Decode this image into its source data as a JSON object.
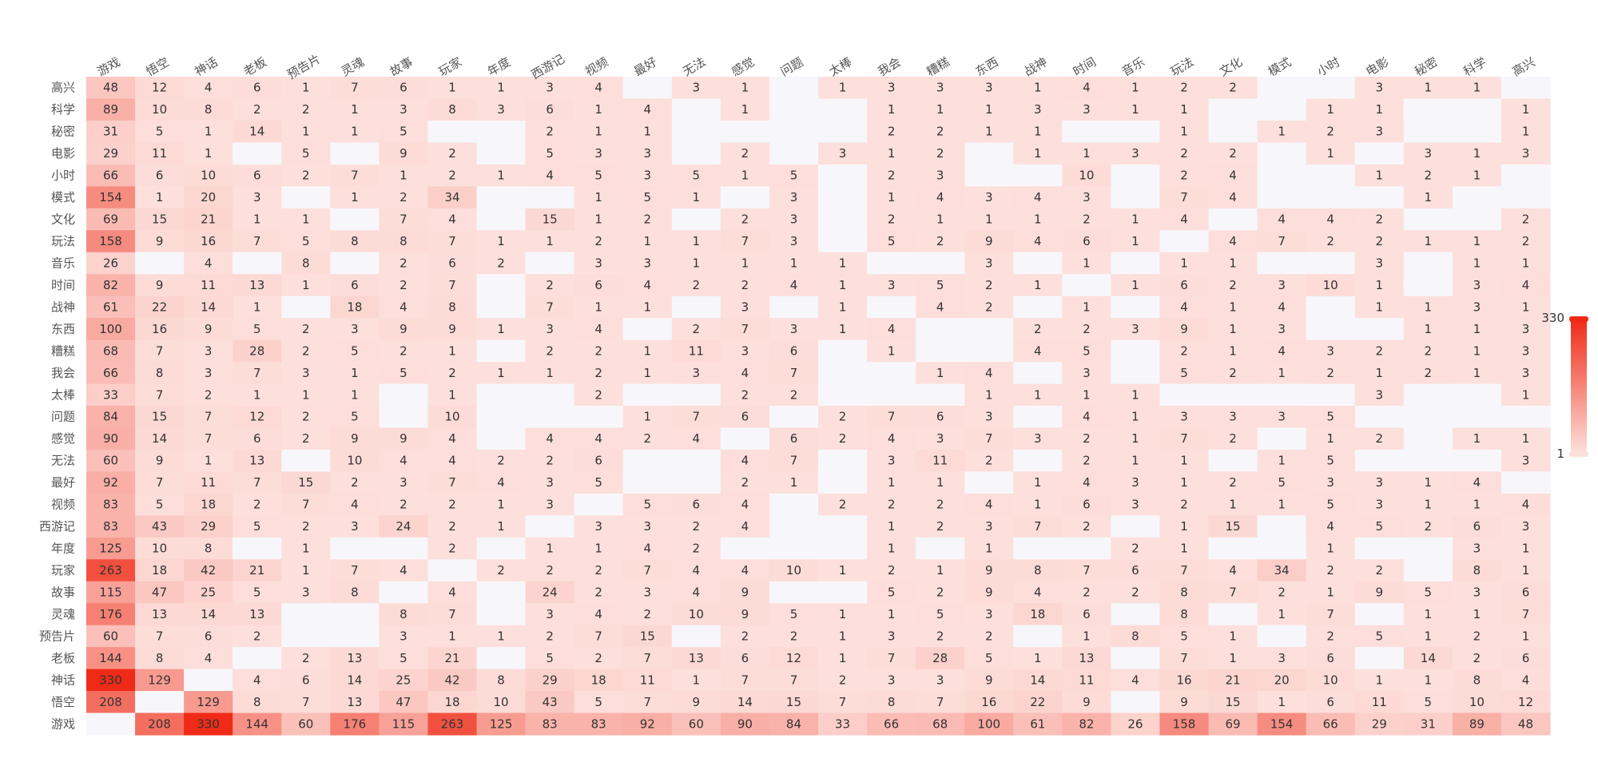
{
  "chart_data": {
    "type": "heatmap",
    "x_labels": [
      "游戏",
      "悟空",
      "神话",
      "老板",
      "预告片",
      "灵魂",
      "故事",
      "玩家",
      "年度",
      "西游记",
      "视频",
      "最好",
      "无法",
      "感觉",
      "问题",
      "太棒",
      "我会",
      "糟糕",
      "东西",
      "战神",
      "时间",
      "音乐",
      "玩法",
      "文化",
      "模式",
      "小时",
      "电影",
      "秘密",
      "科学",
      "高兴"
    ],
    "y_labels": [
      "高兴",
      "科学",
      "秘密",
      "电影",
      "小时",
      "模式",
      "文化",
      "玩法",
      "音乐",
      "时间",
      "战神",
      "东西",
      "糟糕",
      "我会",
      "太棒",
      "问题",
      "感觉",
      "无法",
      "最好",
      "视频",
      "西游记",
      "年度",
      "玩家",
      "故事",
      "灵魂",
      "预告片",
      "老板",
      "神话",
      "悟空",
      "游戏"
    ],
    "rows": [
      [
        48,
        12,
        4,
        6,
        1,
        7,
        6,
        1,
        1,
        3,
        4,
        null,
        3,
        1,
        null,
        1,
        3,
        3,
        3,
        1,
        4,
        1,
        2,
        2,
        null,
        null,
        3,
        1,
        1,
        null
      ],
      [
        89,
        10,
        8,
        2,
        2,
        1,
        3,
        8,
        3,
        6,
        1,
        4,
        null,
        1,
        null,
        null,
        1,
        1,
        1,
        3,
        3,
        1,
        1,
        null,
        null,
        1,
        1,
        null,
        null,
        1
      ],
      [
        31,
        5,
        1,
        14,
        1,
        1,
        5,
        null,
        null,
        2,
        1,
        1,
        null,
        null,
        null,
        null,
        2,
        2,
        1,
        1,
        null,
        null,
        1,
        null,
        1,
        2,
        3,
        null,
        null,
        1
      ],
      [
        29,
        11,
        1,
        null,
        5,
        null,
        9,
        2,
        null,
        5,
        3,
        3,
        null,
        2,
        null,
        3,
        1,
        2,
        null,
        1,
        1,
        3,
        2,
        2,
        null,
        1,
        null,
        3,
        1,
        3
      ],
      [
        66,
        6,
        10,
        6,
        2,
        7,
        1,
        2,
        1,
        4,
        5,
        3,
        5,
        1,
        5,
        null,
        2,
        3,
        null,
        null,
        10,
        null,
        2,
        4,
        null,
        null,
        1,
        2,
        1,
        null
      ],
      [
        154,
        1,
        20,
        3,
        null,
        1,
        2,
        34,
        null,
        null,
        1,
        5,
        1,
        null,
        3,
        null,
        1,
        4,
        3,
        4,
        3,
        null,
        7,
        4,
        null,
        null,
        null,
        1,
        null,
        null
      ],
      [
        69,
        15,
        21,
        1,
        1,
        null,
        7,
        4,
        null,
        15,
        1,
        2,
        null,
        2,
        3,
        null,
        2,
        1,
        1,
        1,
        2,
        1,
        4,
        null,
        4,
        4,
        2,
        null,
        null,
        2
      ],
      [
        158,
        9,
        16,
        7,
        5,
        8,
        8,
        7,
        1,
        1,
        2,
        1,
        1,
        7,
        3,
        null,
        5,
        2,
        9,
        4,
        6,
        1,
        null,
        4,
        7,
        2,
        2,
        1,
        1,
        2
      ],
      [
        26,
        null,
        4,
        null,
        8,
        null,
        2,
        6,
        2,
        null,
        3,
        3,
        1,
        1,
        1,
        1,
        null,
        null,
        3,
        null,
        1,
        null,
        1,
        1,
        null,
        null,
        3,
        null,
        1,
        1
      ],
      [
        82,
        9,
        11,
        13,
        1,
        6,
        2,
        7,
        null,
        2,
        6,
        4,
        2,
        2,
        4,
        1,
        3,
        5,
        2,
        1,
        null,
        1,
        6,
        2,
        3,
        10,
        1,
        null,
        3,
        4
      ],
      [
        61,
        22,
        14,
        1,
        null,
        18,
        4,
        8,
        null,
        7,
        1,
        1,
        null,
        3,
        null,
        1,
        null,
        4,
        2,
        null,
        1,
        null,
        4,
        1,
        4,
        null,
        1,
        1,
        3,
        1
      ],
      [
        100,
        16,
        9,
        5,
        2,
        3,
        9,
        9,
        1,
        3,
        4,
        null,
        2,
        7,
        3,
        1,
        4,
        null,
        null,
        2,
        2,
        3,
        9,
        1,
        3,
        null,
        null,
        1,
        1,
        3
      ],
      [
        68,
        7,
        3,
        28,
        2,
        5,
        2,
        1,
        null,
        2,
        2,
        1,
        11,
        3,
        6,
        null,
        1,
        null,
        null,
        4,
        5,
        null,
        2,
        1,
        4,
        3,
        2,
        2,
        1,
        3
      ],
      [
        66,
        8,
        3,
        7,
        3,
        1,
        5,
        2,
        1,
        1,
        2,
        1,
        3,
        4,
        7,
        null,
        null,
        1,
        4,
        null,
        3,
        null,
        5,
        2,
        1,
        2,
        1,
        2,
        1,
        3
      ],
      [
        33,
        7,
        2,
        1,
        1,
        1,
        null,
        1,
        null,
        null,
        2,
        null,
        null,
        2,
        2,
        null,
        null,
        null,
        1,
        1,
        1,
        1,
        null,
        null,
        null,
        null,
        3,
        null,
        null,
        1
      ],
      [
        84,
        15,
        7,
        12,
        2,
        5,
        null,
        10,
        null,
        null,
        null,
        1,
        7,
        6,
        null,
        2,
        7,
        6,
        3,
        null,
        4,
        1,
        3,
        3,
        3,
        5,
        null,
        null,
        null,
        null
      ],
      [
        90,
        14,
        7,
        6,
        2,
        9,
        9,
        4,
        null,
        4,
        4,
        2,
        4,
        null,
        6,
        2,
        4,
        3,
        7,
        3,
        2,
        1,
        7,
        2,
        null,
        1,
        2,
        null,
        1,
        1
      ],
      [
        60,
        9,
        1,
        13,
        null,
        10,
        4,
        4,
        2,
        2,
        6,
        null,
        null,
        4,
        7,
        null,
        3,
        11,
        2,
        null,
        2,
        1,
        1,
        null,
        1,
        5,
        null,
        null,
        null,
        3
      ],
      [
        92,
        7,
        11,
        7,
        15,
        2,
        3,
        7,
        4,
        3,
        5,
        null,
        null,
        2,
        1,
        null,
        1,
        1,
        null,
        1,
        4,
        3,
        1,
        2,
        5,
        3,
        3,
        1,
        4,
        null
      ],
      [
        83,
        5,
        18,
        2,
        7,
        4,
        2,
        2,
        1,
        3,
        null,
        5,
        6,
        4,
        null,
        2,
        2,
        2,
        4,
        1,
        6,
        3,
        2,
        1,
        1,
        5,
        3,
        1,
        1,
        4
      ],
      [
        83,
        43,
        29,
        5,
        2,
        3,
        24,
        2,
        1,
        null,
        3,
        3,
        2,
        4,
        null,
        null,
        1,
        2,
        3,
        7,
        2,
        null,
        1,
        15,
        null,
        4,
        5,
        2,
        6,
        3
      ],
      [
        125,
        10,
        8,
        null,
        1,
        null,
        null,
        2,
        null,
        1,
        1,
        4,
        2,
        null,
        null,
        null,
        1,
        null,
        1,
        null,
        null,
        2,
        1,
        null,
        null,
        1,
        null,
        null,
        3,
        1
      ],
      [
        263,
        18,
        42,
        21,
        1,
        7,
        4,
        null,
        2,
        2,
        2,
        7,
        4,
        4,
        10,
        1,
        2,
        1,
        9,
        8,
        7,
        6,
        7,
        4,
        34,
        2,
        2,
        null,
        8,
        1
      ],
      [
        115,
        47,
        25,
        5,
        3,
        8,
        null,
        4,
        null,
        24,
        2,
        3,
        4,
        9,
        null,
        null,
        5,
        2,
        9,
        4,
        2,
        2,
        8,
        7,
        2,
        1,
        9,
        5,
        3,
        6
      ],
      [
        176,
        13,
        14,
        13,
        null,
        null,
        8,
        7,
        null,
        3,
        4,
        2,
        10,
        9,
        5,
        1,
        1,
        5,
        3,
        18,
        6,
        null,
        8,
        null,
        1,
        7,
        null,
        1,
        1,
        7
      ],
      [
        60,
        7,
        6,
        2,
        null,
        null,
        3,
        1,
        1,
        2,
        7,
        15,
        null,
        2,
        2,
        1,
        3,
        2,
        2,
        null,
        1,
        8,
        5,
        1,
        null,
        2,
        5,
        1,
        2,
        1
      ],
      [
        144,
        8,
        4,
        null,
        2,
        13,
        5,
        21,
        null,
        5,
        2,
        7,
        13,
        6,
        12,
        1,
        7,
        28,
        5,
        1,
        13,
        null,
        7,
        1,
        3,
        6,
        null,
        14,
        2,
        6
      ],
      [
        330,
        129,
        null,
        4,
        6,
        14,
        25,
        42,
        8,
        29,
        18,
        11,
        1,
        7,
        7,
        2,
        3,
        3,
        9,
        14,
        11,
        4,
        16,
        21,
        20,
        10,
        1,
        1,
        8,
        4
      ],
      [
        208,
        null,
        129,
        8,
        7,
        13,
        47,
        18,
        10,
        43,
        5,
        7,
        9,
        14,
        15,
        7,
        8,
        7,
        16,
        22,
        9,
        null,
        9,
        15,
        1,
        6,
        11,
        5,
        10,
        12
      ],
      [
        null,
        208,
        330,
        144,
        60,
        176,
        115,
        263,
        125,
        83,
        83,
        92,
        60,
        90,
        84,
        33,
        66,
        68,
        100,
        61,
        82,
        26,
        158,
        69,
        154,
        66,
        29,
        31,
        89,
        48
      ]
    ],
    "color_scale": {
      "min": 1,
      "max": 330,
      "low_color": "#fde0dc",
      "high_color": "#ef2b17",
      "missing_color": "#f7f7fb"
    },
    "legend": {
      "position": "right",
      "max_label": "330",
      "min_label": "1"
    }
  }
}
